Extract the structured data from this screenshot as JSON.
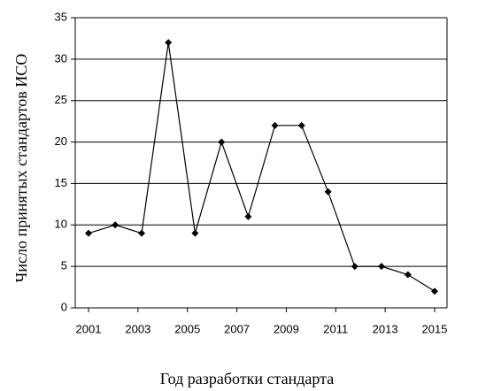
{
  "chart_data": {
    "type": "line",
    "x_label": "Год разработки стандарта",
    "y_label": "Число принятых стандартов ИСО",
    "x": [
      2001,
      2002.08,
      2003.15,
      2004.23,
      2005.31,
      2006.38,
      2007.46,
      2008.54,
      2009.62,
      2010.69,
      2011.77,
      2012.85,
      2013.92,
      2015
    ],
    "series": [
      {
        "name": "ISO",
        "color": "#000000",
        "values": [
          9,
          10,
          9,
          32,
          9,
          20,
          11,
          22,
          22,
          14,
          5,
          5,
          4,
          2
        ]
      }
    ],
    "xlim": [
      2001,
      2015
    ],
    "xticks": [
      2001,
      2003,
      2005,
      2007,
      2009,
      2011,
      2013,
      2015
    ],
    "ylim": [
      0,
      35
    ],
    "yticks": [
      0,
      5,
      10,
      15,
      20,
      25,
      30,
      35
    ],
    "grid": true
  }
}
